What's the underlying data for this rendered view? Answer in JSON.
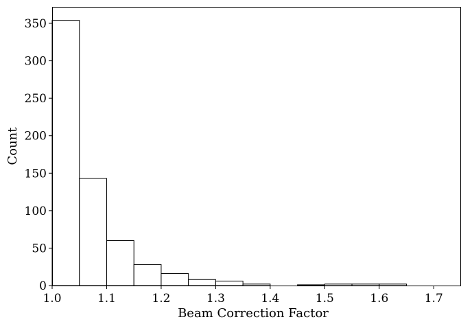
{
  "chart_data": {
    "type": "bar",
    "subtype": "histogram",
    "title": "",
    "xlabel": "Beam Correction Factor",
    "ylabel": "Count",
    "bin_width": 0.05,
    "bins": [
      {
        "start": 1.0,
        "end": 1.05,
        "count": 354
      },
      {
        "start": 1.05,
        "end": 1.1,
        "count": 143
      },
      {
        "start": 1.1,
        "end": 1.15,
        "count": 60
      },
      {
        "start": 1.15,
        "end": 1.2,
        "count": 28
      },
      {
        "start": 1.2,
        "end": 1.25,
        "count": 16
      },
      {
        "start": 1.25,
        "end": 1.3,
        "count": 8
      },
      {
        "start": 1.3,
        "end": 1.35,
        "count": 6
      },
      {
        "start": 1.35,
        "end": 1.4,
        "count": 2
      },
      {
        "start": 1.4,
        "end": 1.45,
        "count": 0
      },
      {
        "start": 1.45,
        "end": 1.5,
        "count": 1
      },
      {
        "start": 1.5,
        "end": 1.55,
        "count": 2
      },
      {
        "start": 1.55,
        "end": 1.6,
        "count": 2
      },
      {
        "start": 1.6,
        "end": 1.65,
        "count": 2
      }
    ],
    "xlim": [
      1.0,
      1.75
    ],
    "ylim": [
      0,
      372
    ],
    "xticks": [
      {
        "value": 1.0,
        "label": "1.0"
      },
      {
        "value": 1.1,
        "label": "1.1"
      },
      {
        "value": 1.2,
        "label": "1.2"
      },
      {
        "value": 1.3,
        "label": "1.3"
      },
      {
        "value": 1.4,
        "label": "1.4"
      },
      {
        "value": 1.5,
        "label": "1.5"
      },
      {
        "value": 1.6,
        "label": "1.6"
      },
      {
        "value": 1.7,
        "label": "1.7"
      }
    ],
    "yticks": [
      {
        "value": 0,
        "label": "0"
      },
      {
        "value": 50,
        "label": "50"
      },
      {
        "value": 100,
        "label": "100"
      },
      {
        "value": 150,
        "label": "150"
      },
      {
        "value": 200,
        "label": "200"
      },
      {
        "value": 250,
        "label": "250"
      },
      {
        "value": 300,
        "label": "300"
      },
      {
        "value": 350,
        "label": "350"
      }
    ],
    "grid": false,
    "legend": "none",
    "colors": {
      "bar_fill": "#ffffff",
      "bar_edge": "#000000",
      "axis": "#000000"
    }
  }
}
